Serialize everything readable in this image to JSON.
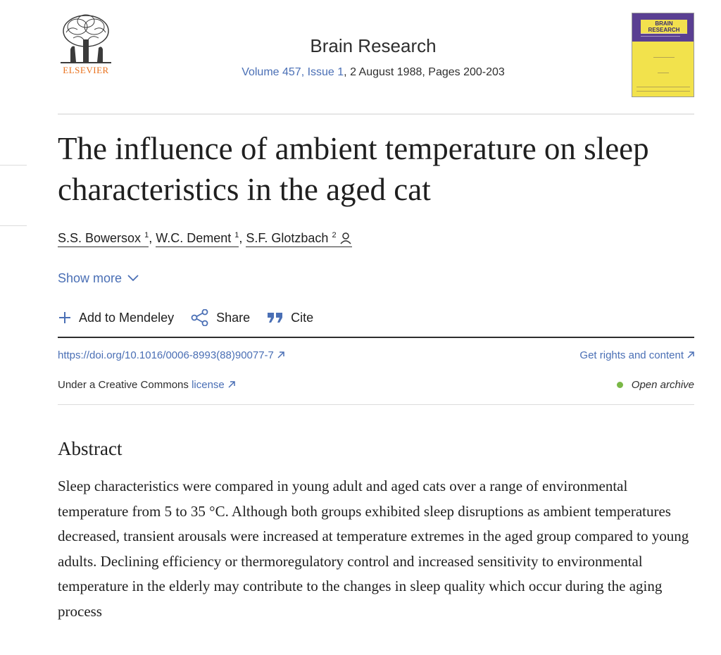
{
  "publisher": {
    "logo_text": "ELSEVIER"
  },
  "journal": {
    "name": "Brain Research",
    "volume_link": "Volume 457, Issue 1",
    "issue_rest": ", 2 August 1988, Pages 200-203",
    "cover_title": "BRAIN RESEARCH"
  },
  "article": {
    "title": "The influence of ambient temperature on sleep characteristics in the aged cat",
    "authors": [
      {
        "name": "S.S. Bowersox",
        "sup": "1"
      },
      {
        "name": "W.C. Dement",
        "sup": "1"
      },
      {
        "name": "S.F. Glotzbach",
        "sup": "2"
      }
    ],
    "separator": ", ",
    "show_more": "Show more"
  },
  "actions": {
    "mendeley": "Add to Mendeley",
    "share": "Share",
    "cite": "Cite"
  },
  "links": {
    "doi": "https://doi.org/10.1016/0006-8993(88)90077-7",
    "rights": "Get rights and content",
    "license_prefix": "Under a Creative Commons ",
    "license_link": "license",
    "open_archive": "Open archive"
  },
  "abstract": {
    "heading": "Abstract",
    "text": "Sleep characteristics were compared in young adult and aged cats over a range of environmental temperature from 5 to 35 °C. Although both groups exhibited sleep disruptions as ambient temperatures decreased, transient arousals were increased at temperature extremes in the aged group compared to young adults. Declining efficiency or thermoregulatory control and increased sensitivity to environmental temperature in the elderly may contribute to the changes in sleep quality which occur during the aging process"
  },
  "colors": {
    "link": "#4a6fb5",
    "publisher_orange": "#e9711c",
    "open_archive_dot": "#7ab846",
    "cover_purple": "#5a3f92",
    "cover_yellow": "#f2e24c"
  },
  "icons": [
    "person-icon",
    "chevron-down-icon",
    "plus-icon",
    "share-icon",
    "quote-icon",
    "external-link-icon"
  ]
}
